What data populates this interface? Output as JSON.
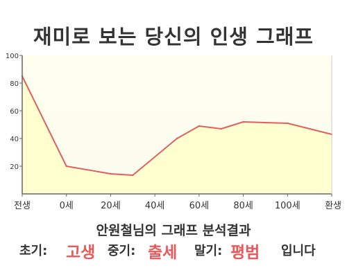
{
  "chart_data": {
    "type": "area",
    "title": "재미로 보는 당신의 인생 그래프",
    "subtitle": "안원철님의 그래프 분석결과",
    "x_tick_labels": [
      "전생",
      "0세",
      "20세",
      "40세",
      "60세",
      "80세",
      "100세",
      "환생"
    ],
    "y_ticks": [
      20,
      40,
      60,
      80,
      100
    ],
    "ylim": [
      0,
      100
    ],
    "xlim": [
      0,
      7
    ],
    "x": [
      0,
      1,
      2,
      2.5,
      3.5,
      4,
      4.5,
      5,
      6,
      7
    ],
    "values": [
      85,
      20,
      14.5,
      13.5,
      40,
      49,
      47,
      52,
      51,
      43
    ],
    "grid": false,
    "colors": {
      "line": "#e06060",
      "fill": "#ffffd0",
      "axis": "#666666"
    }
  },
  "summary": {
    "early_label": "초기:",
    "early_value": "고생",
    "mid_label": "중기:",
    "mid_value": "출세",
    "late_label": "말기:",
    "late_value": "평범",
    "ending": "입니다"
  }
}
